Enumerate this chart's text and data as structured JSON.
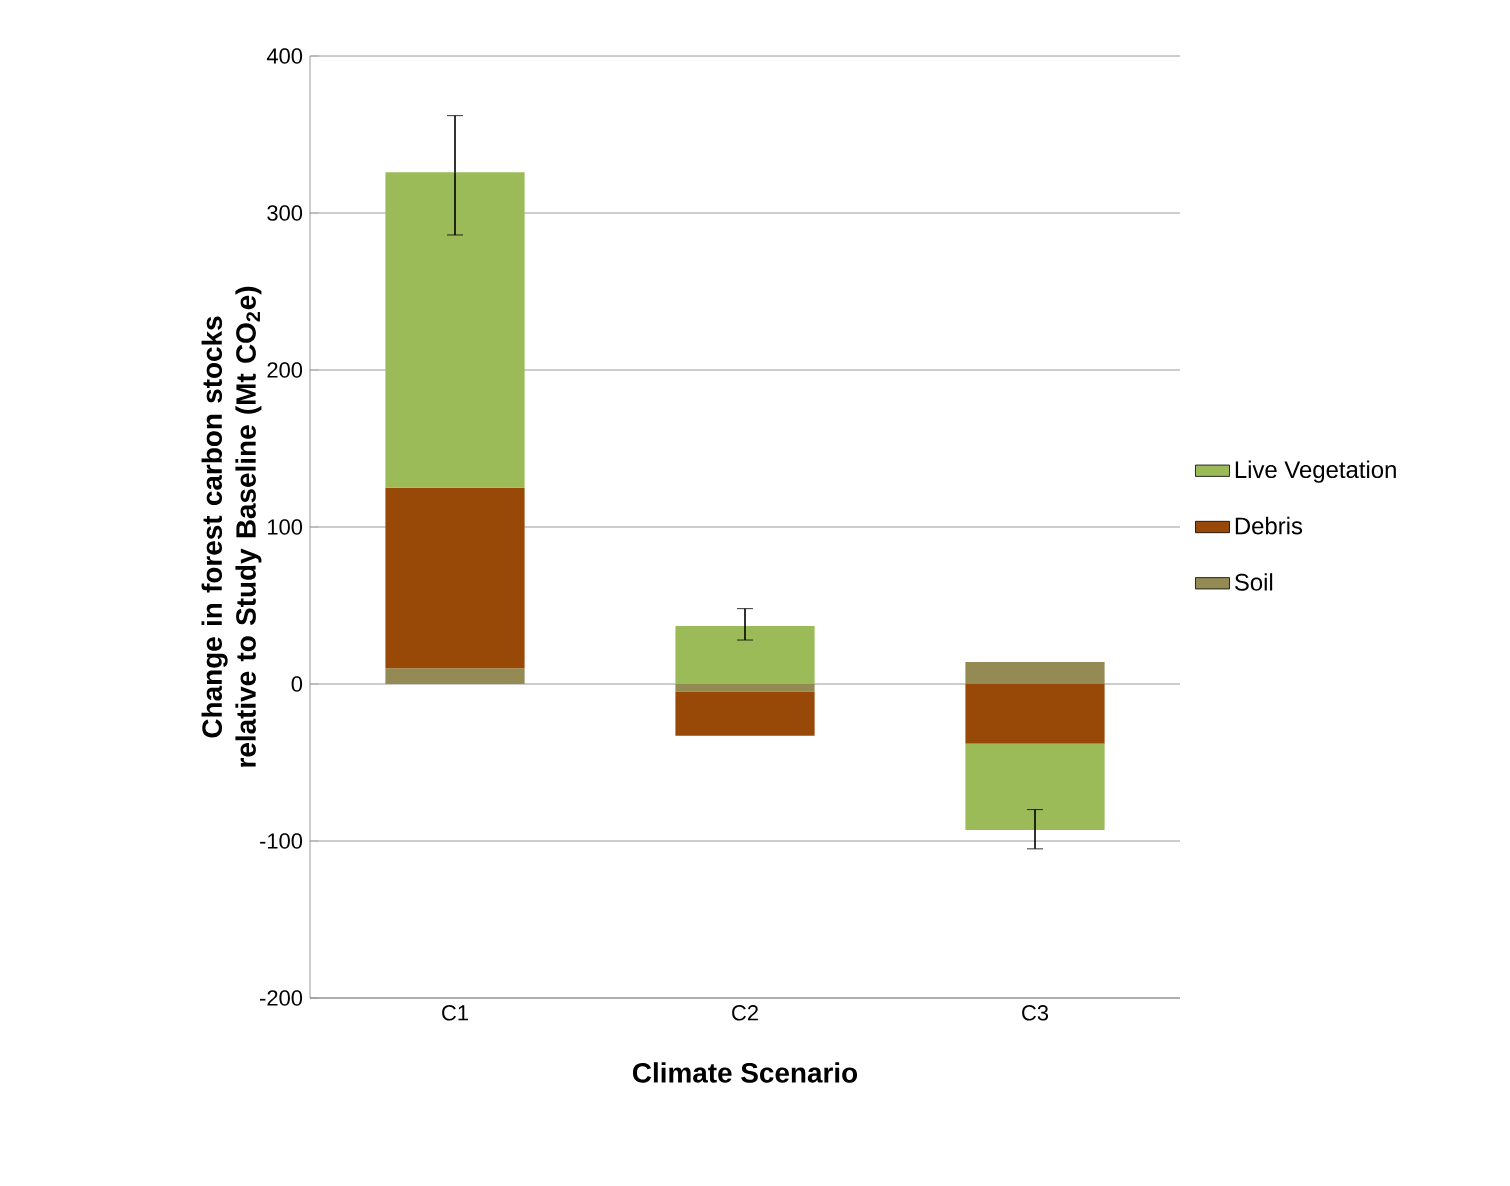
{
  "chart_data": {
    "type": "bar",
    "stacked": true,
    "xlabel": "Climate Scenario",
    "ylabel": "Change in forest carbon stocks relative to Study Baseline (Mt CO$_{2}$e)",
    "categories": [
      "C1",
      "C2",
      "C3"
    ],
    "series": [
      {
        "name": "Soil",
        "color": "#948a54",
        "values": [
          10,
          -5,
          14
        ]
      },
      {
        "name": "Debris",
        "color": "#984807",
        "values": [
          115,
          -28,
          -38
        ]
      },
      {
        "name": "Live Vegetation",
        "color": "#9bbb59",
        "values": [
          201,
          37,
          -55
        ],
        "errors": [
          [
            286,
            362
          ],
          [
            28,
            48
          ],
          [
            -105,
            -80
          ]
        ]
      }
    ],
    "ylim": [
      -200,
      400
    ],
    "yticks": [
      -200,
      -100,
      0,
      100,
      200,
      300,
      400
    ],
    "grid": "y",
    "legend": "right"
  }
}
